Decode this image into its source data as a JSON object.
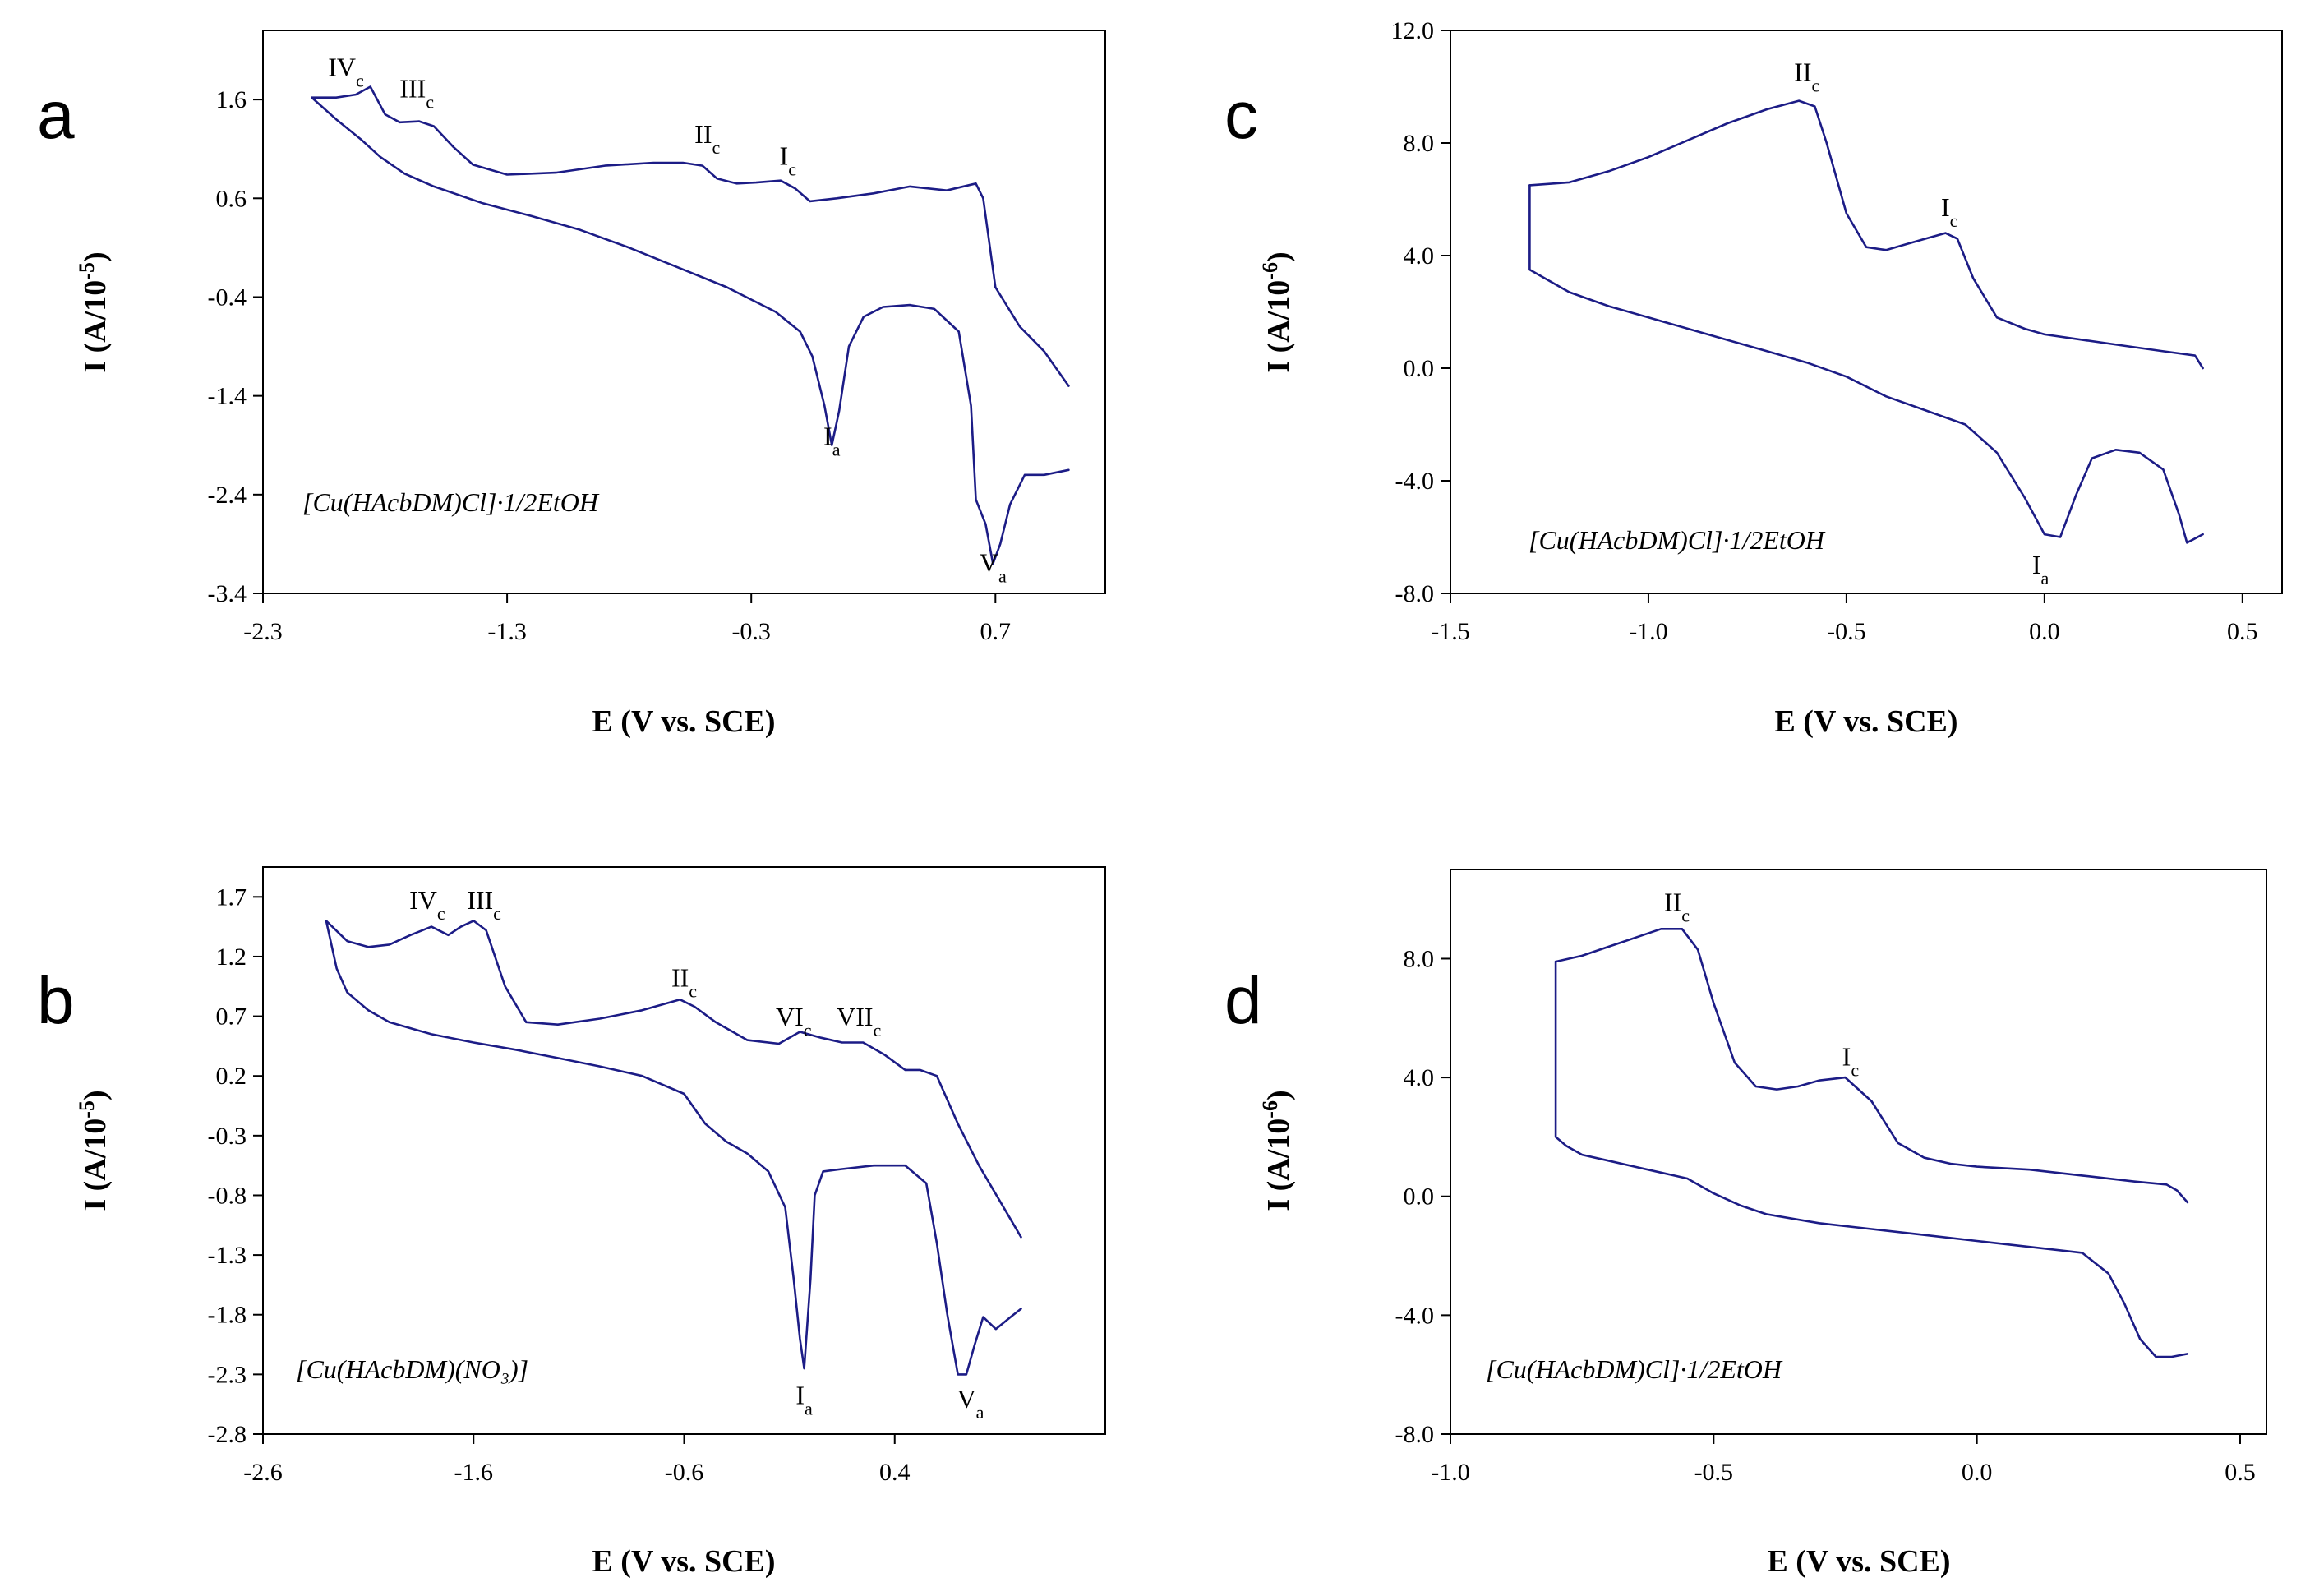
{
  "chart_data": [
    {
      "panel": "a",
      "type": "line",
      "xlabel": "E (V vs. SCE)",
      "ylabel_main": "I (A/10",
      "ylabel_exp": "-5",
      "ylabel_close": ")",
      "xlim": [
        -2.3,
        1.15
      ],
      "ylim": [
        -3.4,
        2.3
      ],
      "xticks": [
        "-2.3",
        "-1.3",
        "-0.3",
        "0.7"
      ],
      "xtick_values": [
        -2.3,
        -1.3,
        -0.3,
        0.7
      ],
      "yticks": [
        "1.6",
        "0.6",
        "-0.4",
        "-1.4",
        "-2.4",
        "-3.4"
      ],
      "ytick_values": [
        1.6,
        0.6,
        -0.4,
        -1.4,
        -2.4,
        -3.4
      ],
      "compound": "[Cu(HAcbDM)Cl]·1/2EtOH",
      "peaks": [
        {
          "main": "IV",
          "sub": "c",
          "x": -1.96,
          "y": 1.84
        },
        {
          "main": "III",
          "sub": "c",
          "x": -1.67,
          "y": 1.62
        },
        {
          "main": "II",
          "sub": "c",
          "x": -0.48,
          "y": 1.16
        },
        {
          "main": "I",
          "sub": "c",
          "x": -0.15,
          "y": 0.94
        },
        {
          "main": "I",
          "sub": "a",
          "x": 0.03,
          "y": -1.9
        },
        {
          "main": "V",
          "sub": "a",
          "x": 0.69,
          "y": -3.18
        }
      ],
      "series": [
        {
          "name": "forward",
          "x": [
            -2.1,
            -2.0,
            -1.92,
            -1.86,
            -1.8,
            -1.74,
            -1.66,
            -1.6,
            -1.52,
            -1.44,
            -1.3,
            -1.1,
            -0.9,
            -0.7,
            -0.58,
            -0.5,
            -0.44,
            -0.36,
            -0.28,
            -0.18,
            -0.12,
            -0.06,
            0.05,
            0.2,
            0.35,
            0.5,
            0.62,
            0.65,
            0.7,
            0.8,
            0.9,
            1.0
          ],
          "y": [
            1.62,
            1.62,
            1.65,
            1.73,
            1.45,
            1.37,
            1.38,
            1.33,
            1.12,
            0.94,
            0.84,
            0.86,
            0.93,
            0.96,
            0.96,
            0.93,
            0.8,
            0.75,
            0.76,
            0.78,
            0.7,
            0.57,
            0.6,
            0.65,
            0.72,
            0.68,
            0.75,
            0.6,
            -0.3,
            -0.7,
            -0.95,
            -1.3
          ]
        },
        {
          "name": "reverse",
          "x": [
            -2.1,
            -2.0,
            -1.9,
            -1.82,
            -1.72,
            -1.6,
            -1.4,
            -1.2,
            -1.0,
            -0.8,
            -0.6,
            -0.4,
            -0.2,
            -0.1,
            -0.05,
            0.0,
            0.03,
            0.06,
            0.1,
            0.16,
            0.24,
            0.35,
            0.45,
            0.55,
            0.6,
            0.62,
            0.66,
            0.69,
            0.72,
            0.76,
            0.82,
            0.9,
            1.0
          ],
          "y": [
            1.62,
            1.4,
            1.2,
            1.02,
            0.85,
            0.72,
            0.55,
            0.42,
            0.28,
            0.1,
            -0.1,
            -0.3,
            -0.55,
            -0.75,
            -1.0,
            -1.5,
            -1.9,
            -1.55,
            -0.9,
            -0.6,
            -0.5,
            -0.48,
            -0.52,
            -0.75,
            -1.5,
            -2.45,
            -2.7,
            -3.1,
            -2.9,
            -2.5,
            -2.2,
            -2.2,
            -2.15
          ]
        }
      ]
    },
    {
      "panel": "b",
      "type": "line",
      "xlabel": "E (V vs. SCE)",
      "ylabel_main": "I (A/10",
      "ylabel_exp": "-5",
      "ylabel_close": ")",
      "xlim": [
        -2.6,
        1.4
      ],
      "ylim": [
        -2.8,
        1.95
      ],
      "xticks": [
        "-2.6",
        "-1.6",
        "-0.6",
        "0.4"
      ],
      "xtick_values": [
        -2.6,
        -1.6,
        -0.6,
        0.4
      ],
      "yticks": [
        "1.7",
        "1.2",
        "0.7",
        "0.2",
        "-0.3",
        "-0.8",
        "-1.3",
        "-1.8",
        "-2.3",
        "-2.8"
      ],
      "ytick_values": [
        1.7,
        1.2,
        0.7,
        0.2,
        -0.3,
        -0.8,
        -1.3,
        -1.8,
        -2.3,
        -2.8
      ],
      "compound": "[Cu(HAcbDM)(NO₃)]",
      "peaks": [
        {
          "main": "IV",
          "sub": "c",
          "x": -1.82,
          "y": 1.6
        },
        {
          "main": "III",
          "sub": "c",
          "x": -1.55,
          "y": 1.6
        },
        {
          "main": "II",
          "sub": "c",
          "x": -0.6,
          "y": 0.95
        },
        {
          "main": "VI",
          "sub": "c",
          "x": -0.08,
          "y": 0.62
        },
        {
          "main": "VII",
          "sub": "c",
          "x": 0.23,
          "y": 0.62
        },
        {
          "main": "I",
          "sub": "a",
          "x": -0.03,
          "y": -2.55
        },
        {
          "main": "V",
          "sub": "a",
          "x": 0.76,
          "y": -2.58
        }
      ],
      "series": [
        {
          "name": "forward",
          "x": [
            -2.3,
            -2.2,
            -2.1,
            -2.0,
            -1.9,
            -1.8,
            -1.72,
            -1.66,
            -1.6,
            -1.54,
            -1.45,
            -1.35,
            -1.2,
            -1.0,
            -0.8,
            -0.62,
            -0.55,
            -0.45,
            -0.3,
            -0.15,
            -0.05,
            0.05,
            0.15,
            0.25,
            0.35,
            0.45,
            0.52,
            0.6,
            0.7,
            0.8,
            0.9,
            1.0
          ],
          "y": [
            1.5,
            1.33,
            1.28,
            1.3,
            1.38,
            1.45,
            1.38,
            1.45,
            1.5,
            1.42,
            0.95,
            0.65,
            0.63,
            0.68,
            0.75,
            0.84,
            0.78,
            0.65,
            0.5,
            0.47,
            0.57,
            0.52,
            0.48,
            0.48,
            0.38,
            0.25,
            0.25,
            0.2,
            -0.2,
            -0.55,
            -0.85,
            -1.15
          ]
        },
        {
          "name": "reverse",
          "x": [
            -2.3,
            -2.25,
            -2.2,
            -2.1,
            -2.0,
            -1.8,
            -1.6,
            -1.4,
            -1.2,
            -1.0,
            -0.8,
            -0.6,
            -0.5,
            -0.4,
            -0.3,
            -0.2,
            -0.12,
            -0.08,
            -0.05,
            -0.03,
            0.0,
            0.02,
            0.06,
            0.15,
            0.3,
            0.45,
            0.55,
            0.6,
            0.65,
            0.7,
            0.74,
            0.78,
            0.82,
            0.88,
            0.95,
            1.0
          ],
          "y": [
            1.5,
            1.1,
            0.9,
            0.75,
            0.65,
            0.55,
            0.48,
            0.42,
            0.35,
            0.28,
            0.2,
            0.05,
            -0.2,
            -0.35,
            -0.45,
            -0.6,
            -0.9,
            -1.5,
            -2.0,
            -2.25,
            -1.5,
            -0.8,
            -0.6,
            -0.58,
            -0.55,
            -0.55,
            -0.7,
            -1.2,
            -1.8,
            -2.3,
            -2.3,
            -2.05,
            -1.82,
            -1.92,
            -1.82,
            -1.75
          ]
        }
      ]
    },
    {
      "panel": "c",
      "type": "line",
      "xlabel": "E (V vs. SCE)",
      "ylabel_main": "I (A/10",
      "ylabel_exp": "-6",
      "ylabel_close": ")",
      "xlim": [
        -1.5,
        0.6
      ],
      "ylim": [
        -8.0,
        12.0
      ],
      "xticks": [
        "-1.5",
        "-1.0",
        "-0.5",
        "0.0",
        "0.5"
      ],
      "xtick_values": [
        -1.5,
        -1.0,
        -0.5,
        0.0,
        0.5
      ],
      "yticks": [
        "12.0",
        "8.0",
        "4.0",
        "0.0",
        "-4.0",
        "-8.0"
      ],
      "ytick_values": [
        12.0,
        8.0,
        4.0,
        0.0,
        -4.0,
        -8.0
      ],
      "compound": "[Cu(HAcbDM)Cl]·1/2EtOH",
      "peaks": [
        {
          "main": "II",
          "sub": "c",
          "x": -0.6,
          "y": 10.2
        },
        {
          "main": "I",
          "sub": "c",
          "x": -0.24,
          "y": 5.4
        },
        {
          "main": "I",
          "sub": "a",
          "x": -0.01,
          "y": -7.3
        }
      ],
      "series": [
        {
          "name": "forward",
          "x": [
            -1.3,
            -1.2,
            -1.1,
            -1.0,
            -0.9,
            -0.8,
            -0.7,
            -0.62,
            -0.58,
            -0.55,
            -0.5,
            -0.45,
            -0.4,
            -0.35,
            -0.3,
            -0.25,
            -0.22,
            -0.18,
            -0.12,
            -0.05,
            0.0,
            0.1,
            0.2,
            0.3,
            0.38,
            0.4
          ],
          "y": [
            6.5,
            6.6,
            7.0,
            7.5,
            8.1,
            8.7,
            9.2,
            9.5,
            9.3,
            8.0,
            5.5,
            4.3,
            4.2,
            4.4,
            4.6,
            4.8,
            4.6,
            3.2,
            1.8,
            1.4,
            1.2,
            1.0,
            0.8,
            0.6,
            0.45,
            0.0
          ]
        },
        {
          "name": "reverse",
          "x": [
            -1.3,
            -1.3,
            -1.2,
            -1.1,
            -1.0,
            -0.9,
            -0.8,
            -0.7,
            -0.6,
            -0.5,
            -0.4,
            -0.3,
            -0.2,
            -0.12,
            -0.05,
            0.0,
            0.04,
            0.08,
            0.12,
            0.18,
            0.24,
            0.3,
            0.34,
            0.36,
            0.4
          ],
          "y": [
            6.5,
            3.5,
            2.7,
            2.2,
            1.8,
            1.4,
            1.0,
            0.6,
            0.2,
            -0.3,
            -1.0,
            -1.5,
            -2.0,
            -3.0,
            -4.6,
            -5.9,
            -6.0,
            -4.5,
            -3.2,
            -2.9,
            -3.0,
            -3.6,
            -5.2,
            -6.2,
            -5.9
          ]
        }
      ]
    },
    {
      "panel": "d",
      "type": "line",
      "xlabel": "E (V vs. SCE)",
      "ylabel_main": "I (A/10",
      "ylabel_exp": "-6",
      "ylabel_close": ")",
      "xlim": [
        -1.0,
        0.55
      ],
      "ylim": [
        -8.0,
        11.0
      ],
      "xticks": [
        "-1.0",
        "-0.5",
        "0.0",
        "0.5"
      ],
      "xtick_values": [
        -1.0,
        -0.5,
        0.0,
        0.5
      ],
      "yticks": [
        "8.0",
        "4.0",
        "0.0",
        "-4.0",
        "-8.0"
      ],
      "ytick_values": [
        8.0,
        4.0,
        0.0,
        -4.0,
        -8.0
      ],
      "compound": "[Cu(HAcbDM)Cl]·1/2EtOH",
      "peaks": [
        {
          "main": "II",
          "sub": "c",
          "x": -0.57,
          "y": 9.6
        },
        {
          "main": "I",
          "sub": "c",
          "x": -0.24,
          "y": 4.4
        }
      ],
      "series": [
        {
          "name": "forward",
          "x": [
            -0.8,
            -0.75,
            -0.7,
            -0.65,
            -0.6,
            -0.56,
            -0.53,
            -0.5,
            -0.46,
            -0.42,
            -0.38,
            -0.34,
            -0.3,
            -0.25,
            -0.2,
            -0.15,
            -0.1,
            -0.05,
            0.0,
            0.1,
            0.2,
            0.3,
            0.36,
            0.38,
            0.4
          ],
          "y": [
            7.9,
            8.1,
            8.4,
            8.7,
            9.0,
            9.0,
            8.3,
            6.5,
            4.5,
            3.7,
            3.6,
            3.7,
            3.9,
            4.0,
            3.2,
            1.8,
            1.3,
            1.1,
            1.0,
            0.9,
            0.7,
            0.5,
            0.4,
            0.2,
            -0.2
          ]
        },
        {
          "name": "reverse",
          "x": [
            -0.8,
            -0.8,
            -0.78,
            -0.75,
            -0.7,
            -0.65,
            -0.6,
            -0.55,
            -0.5,
            -0.45,
            -0.4,
            -0.3,
            -0.2,
            -0.1,
            0.0,
            0.1,
            0.2,
            0.25,
            0.28,
            0.31,
            0.34,
            0.37,
            0.4
          ],
          "y": [
            7.9,
            2.0,
            1.7,
            1.4,
            1.2,
            1.0,
            0.8,
            0.6,
            0.1,
            -0.3,
            -0.6,
            -0.9,
            -1.1,
            -1.3,
            -1.5,
            -1.7,
            -1.9,
            -2.6,
            -3.6,
            -4.8,
            -5.4,
            -5.4,
            -5.3
          ]
        }
      ]
    }
  ]
}
